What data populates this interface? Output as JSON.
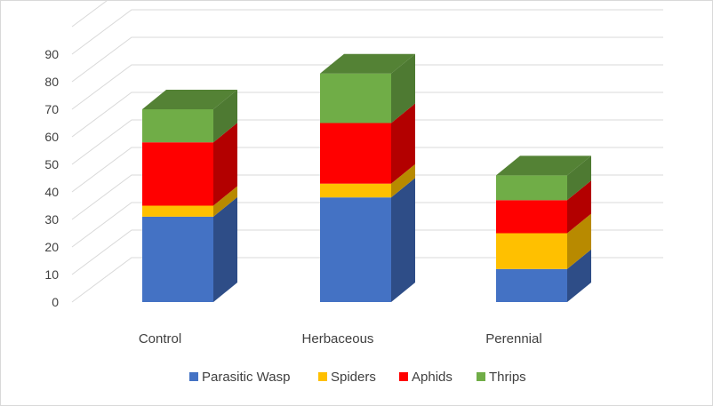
{
  "chart_data": {
    "type": "bar",
    "stacked": true,
    "three_d": true,
    "categories": [
      "Control",
      "Herbaceous",
      "Perennial"
    ],
    "series": [
      {
        "name": "Parasitic Wasp",
        "color": "#4472C4",
        "side_color": "#2E4D87",
        "top_color": "#5B87D6",
        "values": [
          31,
          38,
          12
        ]
      },
      {
        "name": "Spiders",
        "color": "#FFC000",
        "side_color": "#B88A00",
        "top_color": "#FFD24D",
        "values": [
          4,
          5,
          13
        ]
      },
      {
        "name": "Aphids",
        "color": "#FF0000",
        "side_color": "#B30000",
        "top_color": "#FF4D4D",
        "values": [
          23,
          22,
          12
        ]
      },
      {
        "name": "Thrips",
        "color": "#70AD47",
        "side_color": "#4E7A32",
        "top_color": "#548235",
        "values": [
          12,
          18,
          9
        ]
      }
    ],
    "y_ticks": [
      "0",
      "10",
      "20",
      "30",
      "40",
      "50",
      "60",
      "70",
      "80",
      "90"
    ],
    "ylim": [
      0,
      100
    ],
    "grid": true,
    "legend": "bottom",
    "gridline_color": "#D9D9D9"
  }
}
